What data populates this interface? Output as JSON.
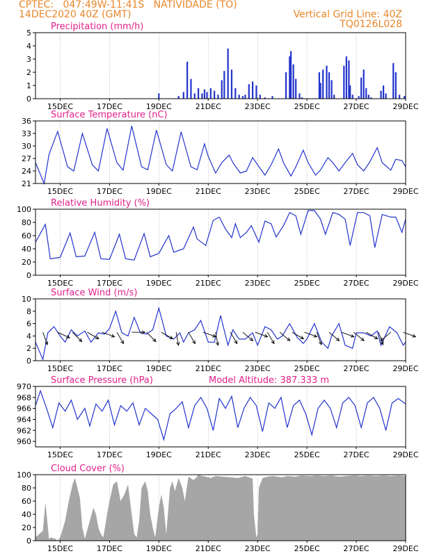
{
  "header": {
    "line1": "CPTEC:   047:49W-11:41S   NATIVIDADE (TO)",
    "line2_left": "14DEC2020 40Z (GMT)",
    "grid_note": "Vertical Grid Line: 40Z",
    "model_id": "TQ0126L028"
  },
  "colors": {
    "header": "#e8862a",
    "panel_title": "#e0208a",
    "line": "#2233cc",
    "bar": "#2233cc",
    "cloud": "#a6a6a6",
    "wind_arrow": "#000000"
  },
  "chart_data": [
    {
      "type": "bar",
      "title": "Precipitation (mm/h)",
      "ylim": [
        0,
        5
      ],
      "yticks": [
        "0",
        "1",
        "2",
        "3",
        "4",
        "5"
      ],
      "xlim": [
        0,
        15
      ],
      "xtick_labels": [
        "15DEC",
        "17DEC",
        "19DEC",
        "21DEC",
        "23DEC",
        "25DEC",
        "27DEC",
        "29DEC"
      ],
      "xtick_positions": [
        1,
        3,
        5,
        7,
        9,
        11,
        13,
        15
      ],
      "x": [
        5.0,
        5.8,
        6.0,
        6.15,
        6.3,
        6.45,
        6.6,
        6.75,
        6.85,
        6.95,
        7.1,
        7.25,
        7.4,
        7.55,
        7.65,
        7.8,
        7.95,
        8.1,
        8.25,
        8.4,
        8.5,
        8.65,
        8.8,
        8.95,
        9.1,
        9.3,
        9.6,
        10.15,
        10.3,
        10.35,
        10.45,
        10.55,
        10.7,
        10.8,
        11.5,
        11.55,
        11.65,
        11.8,
        11.9,
        12.0,
        12.1,
        12.5,
        12.6,
        12.7,
        12.75,
        12.85,
        13.1,
        13.2,
        13.3,
        13.4,
        13.5,
        13.6,
        14.0,
        14.1,
        14.2,
        14.5,
        14.6,
        14.75,
        14.95
      ],
      "values": [
        0.4,
        0.2,
        0.5,
        2.8,
        1.5,
        0.4,
        0.8,
        0.4,
        0.7,
        0.5,
        0.8,
        0.6,
        0.3,
        1.4,
        2.1,
        3.8,
        2.2,
        0.8,
        0.3,
        0.2,
        0.3,
        1.1,
        1.3,
        1.0,
        0.3,
        0.1,
        0.2,
        2.0,
        3.2,
        3.6,
        2.6,
        1.5,
        0.4,
        0.1,
        2.0,
        1.2,
        2.2,
        2.5,
        2.0,
        1.4,
        0.3,
        2.5,
        3.2,
        2.9,
        1.0,
        0.3,
        0.2,
        1.6,
        2.2,
        0.8,
        0.3,
        0.1,
        0.6,
        1.0,
        0.4,
        2.7,
        2.0,
        0.3,
        0.2
      ]
    },
    {
      "type": "line",
      "title": "Surface Temperature (nC)",
      "ylim": [
        21,
        36
      ],
      "yticks": [
        "21",
        "24",
        "27",
        "30",
        "33",
        "36"
      ],
      "xlim": [
        0,
        15
      ],
      "xtick_labels": [
        "15DEC",
        "17DEC",
        "19DEC",
        "21DEC",
        "23DEC",
        "25DEC",
        "27DEC",
        "29DEC"
      ],
      "xtick_positions": [
        1,
        3,
        5,
        7,
        9,
        11,
        13,
        15
      ],
      "x": [
        0.0,
        0.35,
        0.55,
        0.9,
        1.3,
        1.55,
        1.9,
        2.3,
        2.55,
        2.9,
        3.3,
        3.55,
        3.9,
        4.3,
        4.55,
        4.9,
        5.3,
        5.55,
        5.9,
        6.3,
        6.55,
        6.85,
        7.0,
        7.3,
        7.55,
        7.85,
        8.0,
        8.3,
        8.55,
        8.8,
        9.0,
        9.3,
        9.55,
        9.85,
        10.05,
        10.35,
        10.55,
        10.85,
        11.05,
        11.35,
        11.55,
        11.85,
        12.05,
        12.3,
        12.55,
        12.85,
        13.05,
        13.3,
        13.55,
        13.85,
        14.05,
        14.4,
        14.6,
        14.85,
        15.0
      ],
      "values": [
        26.0,
        21.0,
        28.0,
        33.5,
        25.0,
        24.0,
        33.0,
        25.5,
        24.0,
        34.2,
        26.0,
        24.2,
        34.8,
        25.0,
        24.3,
        33.8,
        25.5,
        24.0,
        33.4,
        25.0,
        24.3,
        30.5,
        27.5,
        23.5,
        26.0,
        27.8,
        26.0,
        23.5,
        24.0,
        27.2,
        25.5,
        23.0,
        25.5,
        29.3,
        26.0,
        22.8,
        25.0,
        29.0,
        26.0,
        23.0,
        24.2,
        27.2,
        26.0,
        24.0,
        26.0,
        28.2,
        25.5,
        24.0,
        26.2,
        29.6,
        26.0,
        24.2,
        26.8,
        26.5,
        25.0
      ]
    },
    {
      "type": "line",
      "title": "Relative Humidity (%)",
      "ylim": [
        0,
        100
      ],
      "yticks": [
        "0",
        "20",
        "40",
        "60",
        "80",
        "100"
      ],
      "xlim": [
        0,
        15
      ],
      "xtick_labels": [
        "15DEC",
        "17DEC",
        "19DEC",
        "21DEC",
        "23DEC",
        "25DEC",
        "27DEC",
        "29DEC"
      ],
      "xtick_positions": [
        1,
        3,
        5,
        7,
        9,
        11,
        13,
        15
      ],
      "x": [
        0.0,
        0.4,
        0.6,
        1.0,
        1.4,
        1.65,
        2.0,
        2.4,
        2.65,
        3.0,
        3.4,
        3.65,
        4.0,
        4.4,
        4.65,
        5.0,
        5.4,
        5.6,
        6.0,
        6.4,
        6.55,
        6.9,
        7.2,
        7.45,
        7.7,
        7.95,
        8.1,
        8.3,
        8.55,
        8.75,
        9.05,
        9.3,
        9.55,
        9.75,
        10.05,
        10.3,
        10.55,
        10.75,
        11.05,
        11.3,
        11.55,
        11.75,
        12.05,
        12.3,
        12.55,
        12.75,
        13.05,
        13.3,
        13.55,
        13.75,
        14.05,
        14.4,
        14.6,
        14.85,
        15.0
      ],
      "values": [
        50.0,
        77.0,
        25.0,
        27.0,
        64.0,
        28.0,
        29.0,
        65.0,
        25.0,
        24.0,
        62.0,
        25.0,
        23.0,
        63.0,
        28.0,
        33.0,
        60.0,
        35.0,
        40.0,
        73.0,
        55.0,
        45.0,
        83.0,
        88.0,
        70.0,
        57.0,
        78.0,
        57.0,
        65.0,
        75.0,
        50.0,
        82.0,
        78.0,
        58.0,
        75.0,
        95.0,
        90.0,
        62.0,
        98.0,
        98.0,
        85.0,
        62.0,
        95.0,
        92.0,
        85.0,
        45.0,
        95.0,
        95.0,
        90.0,
        42.0,
        92.0,
        88.0,
        88.0,
        65.0,
        85.0
      ]
    },
    {
      "type": "line",
      "title": "Surface Wind (m/s)",
      "ylim": [
        0,
        10
      ],
      "yticks": [
        "0",
        "2",
        "4",
        "6",
        "8",
        "10"
      ],
      "xlim": [
        0,
        15
      ],
      "xtick_labels": [
        "15DEC",
        "17DEC",
        "19DEC",
        "21DEC",
        "23DEC",
        "25DEC",
        "27DEC",
        "29DEC"
      ],
      "xtick_positions": [
        1,
        3,
        5,
        7,
        9,
        11,
        13,
        15
      ],
      "x": [
        0.0,
        0.3,
        0.5,
        0.75,
        1.0,
        1.2,
        1.45,
        1.7,
        2.0,
        2.25,
        2.55,
        2.8,
        3.0,
        3.25,
        3.5,
        3.75,
        4.0,
        4.25,
        4.5,
        4.75,
        5.0,
        5.3,
        5.6,
        5.85,
        6.0,
        6.2,
        6.45,
        6.7,
        7.0,
        7.25,
        7.5,
        7.8,
        8.0,
        8.25,
        8.5,
        8.8,
        9.0,
        9.3,
        9.55,
        9.8,
        10.0,
        10.3,
        10.6,
        10.85,
        11.0,
        11.3,
        11.6,
        11.85,
        12.0,
        12.3,
        12.55,
        12.85,
        13.0,
        13.3,
        13.6,
        13.85,
        14.0,
        14.35,
        14.65,
        14.9,
        15.0
      ],
      "values": [
        3.0,
        0.2,
        4.5,
        5.5,
        4.0,
        3.0,
        5.0,
        4.0,
        4.8,
        3.0,
        4.5,
        4.3,
        5.2,
        8.0,
        4.5,
        4.0,
        7.0,
        4.5,
        4.3,
        5.0,
        8.5,
        4.0,
        3.5,
        4.5,
        3.0,
        4.5,
        5.0,
        6.5,
        3.0,
        3.0,
        7.3,
        2.5,
        5.0,
        3.5,
        3.5,
        4.5,
        2.5,
        5.5,
        5.0,
        3.5,
        4.0,
        6.0,
        3.8,
        2.8,
        3.5,
        6.0,
        3.0,
        2.0,
        4.0,
        6.0,
        2.5,
        2.0,
        4.5,
        4.5,
        4.0,
        4.8,
        2.5,
        5.5,
        4.5,
        2.5,
        3.0
      ],
      "arrows_x": [
        0.3,
        0.9,
        1.5,
        2.1,
        2.7,
        3.3,
        3.9,
        4.5,
        5.1,
        5.7,
        6.2,
        6.8,
        7.3,
        7.9,
        8.4,
        8.9,
        9.4,
        9.9,
        10.4,
        10.9,
        11.4,
        11.9,
        12.4,
        12.9,
        13.4,
        13.9,
        14.4,
        14.9
      ],
      "arrows_dir": [
        110,
        155,
        135,
        150,
        160,
        120,
        180,
        135,
        150,
        100,
        120,
        160,
        100,
        120,
        140,
        160,
        120,
        140,
        150,
        160,
        110,
        140,
        160,
        140,
        150,
        110,
        40,
        160
      ]
    },
    {
      "type": "line",
      "title": "Surface Pressure (hPa)",
      "annotation": "Model Altitude: 387.333 m",
      "ylim": [
        959,
        970
      ],
      "yticks": [
        "960",
        "962",
        "964",
        "966",
        "968",
        "970"
      ],
      "xlim": [
        0,
        15
      ],
      "xtick_labels": [
        "15DEC",
        "17DEC",
        "19DEC",
        "21DEC",
        "23DEC",
        "25DEC",
        "27DEC",
        "29DEC"
      ],
      "xtick_positions": [
        1,
        3,
        5,
        7,
        9,
        11,
        13,
        15
      ],
      "x": [
        0.0,
        0.2,
        0.45,
        0.7,
        0.95,
        1.2,
        1.45,
        1.7,
        2.0,
        2.2,
        2.45,
        2.7,
        2.95,
        3.2,
        3.45,
        3.7,
        3.95,
        4.2,
        4.45,
        4.7,
        4.95,
        5.2,
        5.45,
        5.7,
        5.95,
        6.2,
        6.45,
        6.7,
        6.95,
        7.2,
        7.45,
        7.7,
        7.95,
        8.2,
        8.45,
        8.7,
        8.95,
        9.2,
        9.45,
        9.7,
        9.95,
        10.2,
        10.45,
        10.7,
        10.95,
        11.2,
        11.45,
        11.7,
        11.95,
        12.2,
        12.45,
        12.7,
        12.95,
        13.2,
        13.45,
        13.7,
        13.95,
        14.2,
        14.45,
        14.7,
        15.0
      ],
      "values": [
        966.5,
        969.2,
        966.0,
        962.5,
        967.0,
        965.5,
        967.5,
        964.0,
        966.0,
        962.8,
        966.8,
        965.5,
        967.5,
        963.0,
        966.5,
        965.5,
        967.0,
        963.0,
        966.0,
        965.0,
        964.0,
        960.3,
        965.0,
        966.0,
        967.2,
        962.5,
        966.5,
        968.0,
        966.0,
        962.0,
        967.8,
        966.0,
        968.2,
        962.5,
        966.0,
        968.0,
        966.5,
        961.8,
        967.0,
        966.0,
        968.0,
        962.5,
        966.5,
        967.5,
        965.0,
        961.2,
        966.0,
        967.5,
        966.0,
        962.5,
        967.0,
        968.0,
        966.5,
        962.5,
        967.0,
        968.0,
        966.0,
        962.0,
        967.0,
        967.8,
        966.8
      ]
    },
    {
      "type": "area",
      "title": "Cloud Cover (%)",
      "ylim": [
        0,
        100
      ],
      "yticks": [
        "0",
        "20",
        "40",
        "60",
        "80",
        "100"
      ],
      "xlim": [
        0,
        15
      ],
      "xtick_labels": [
        "15DEC",
        "17DEC",
        "19DEC",
        "21DEC",
        "23DEC",
        "25DEC",
        "27DEC",
        "29DEC"
      ],
      "xtick_positions": [
        1,
        3,
        5,
        7,
        9,
        11,
        13,
        15
      ],
      "x": [
        0.0,
        0.3,
        0.4,
        0.45,
        0.55,
        0.6,
        0.8,
        0.9,
        1.0,
        1.2,
        1.35,
        1.5,
        1.6,
        1.7,
        1.8,
        1.9,
        2.0,
        2.2,
        2.35,
        2.45,
        2.55,
        2.65,
        2.75,
        2.9,
        3.0,
        3.15,
        3.3,
        3.45,
        3.6,
        3.75,
        3.9,
        4.0,
        4.1,
        4.2,
        4.3,
        4.45,
        4.55,
        4.65,
        4.75,
        4.85,
        5.0,
        5.1,
        5.2,
        5.3,
        5.45,
        5.55,
        5.65,
        5.8,
        5.95,
        6.05,
        6.2,
        6.4,
        6.5,
        6.6,
        6.75,
        6.9,
        7.1,
        7.3,
        7.6,
        7.9,
        8.2,
        8.5,
        8.8,
        8.85,
        8.95,
        9.0,
        9.05,
        9.2,
        9.4,
        9.6,
        9.8,
        10.0,
        10.2,
        10.5,
        10.8,
        11.1,
        11.4,
        11.7,
        12.0,
        12.3,
        12.6,
        12.9,
        13.2,
        13.5,
        13.8,
        14.1,
        14.4,
        14.7,
        15.0
      ],
      "values": [
        5,
        15,
        58,
        40,
        2,
        5,
        3,
        0,
        5,
        30,
        60,
        85,
        95,
        80,
        65,
        20,
        3,
        30,
        50,
        40,
        20,
        10,
        5,
        40,
        60,
        85,
        90,
        60,
        70,
        85,
        40,
        10,
        5,
        30,
        80,
        90,
        75,
        40,
        20,
        5,
        50,
        70,
        50,
        10,
        80,
        90,
        75,
        95,
        80,
        60,
        97,
        92,
        95,
        100,
        98,
        97,
        95,
        98,
        97,
        96,
        95,
        98,
        94,
        40,
        5,
        10,
        80,
        95,
        97,
        98,
        97,
        96,
        98,
        97,
        99,
        98,
        99,
        98,
        99,
        97,
        98,
        99,
        98,
        99,
        98,
        99,
        98,
        99,
        98
      ]
    }
  ]
}
